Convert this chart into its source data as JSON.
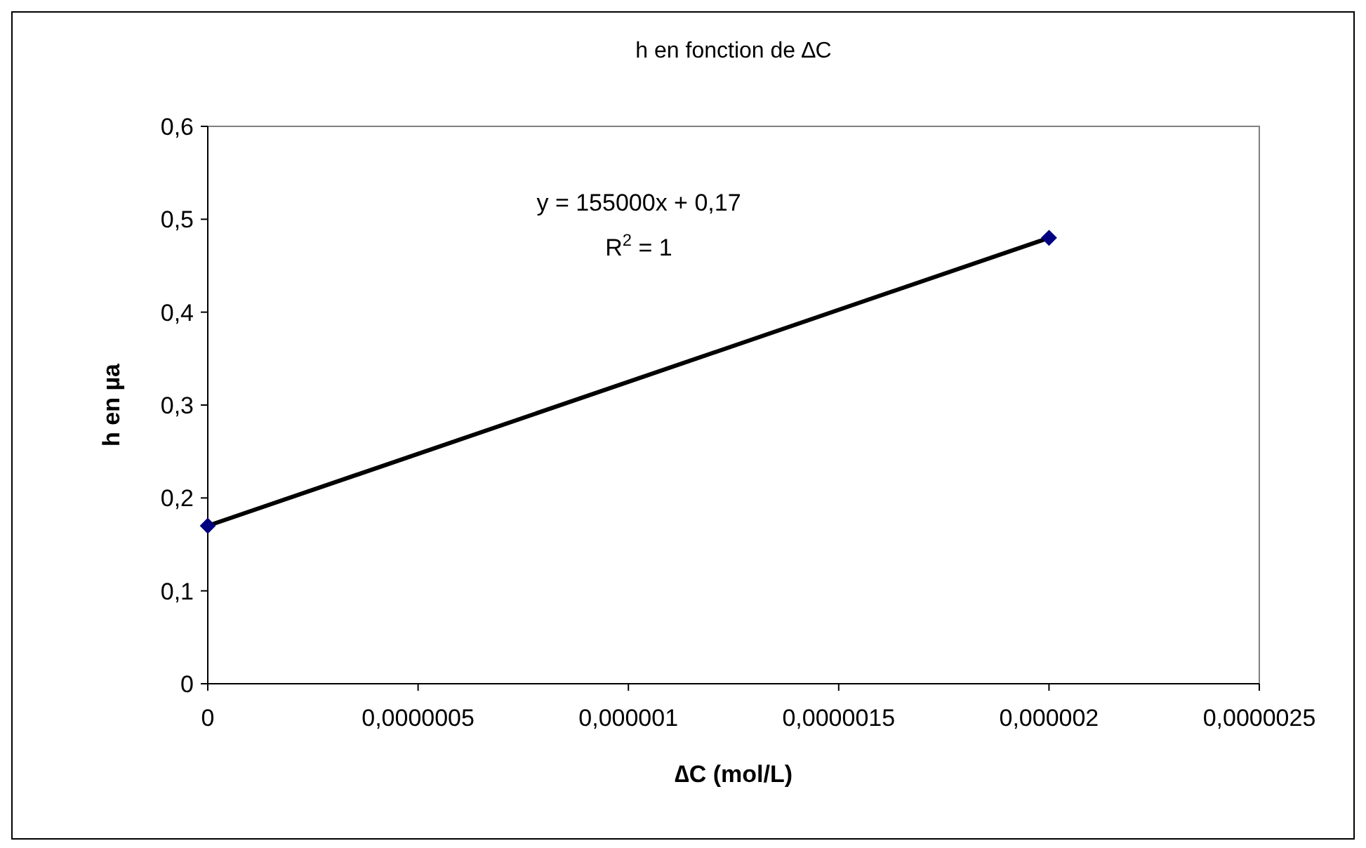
{
  "chart_data": {
    "type": "scatter",
    "title": "h en fonction de ∆C",
    "xlabel": "∆C (mol/L)",
    "ylabel": "h en µa",
    "annotations": [
      "y = 155000x + 0,17",
      "R$^{2}$ = 1"
    ],
    "xlim": [
      0,
      2.5e-06
    ],
    "ylim": [
      0,
      0.6
    ],
    "xticks": [
      0,
      {
        "value": 5e-07,
        "label": "0,0000005"
      },
      {
        "value": 1e-06,
        "label": "0,000001"
      },
      {
        "value": 1.5e-06,
        "label": "0,0000015"
      },
      {
        "value": 2e-06,
        "label": "0,000002"
      },
      {
        "value": 2.5e-06,
        "label": "0,0000025"
      }
    ],
    "yticks": [
      0,
      {
        "value": 0.1,
        "label": "0,1"
      },
      {
        "value": 0.2,
        "label": "0,2"
      },
      {
        "value": 0.3,
        "label": "0,3"
      },
      {
        "value": 0.4,
        "label": "0,4"
      },
      {
        "value": 0.5,
        "label": "0,5"
      },
      {
        "value": 0.6,
        "label": "0,6"
      }
    ],
    "grid": false,
    "x": [
      0,
      2e-06
    ],
    "series": [
      {
        "type": "line",
        "color": "#000000",
        "values": [
          0.17,
          0.48
        ],
        "marker": "none",
        "line_style": "solid"
      },
      {
        "color": "#000080",
        "values": [
          0.17,
          0.48
        ],
        "marker": "diamond"
      }
    ]
  }
}
